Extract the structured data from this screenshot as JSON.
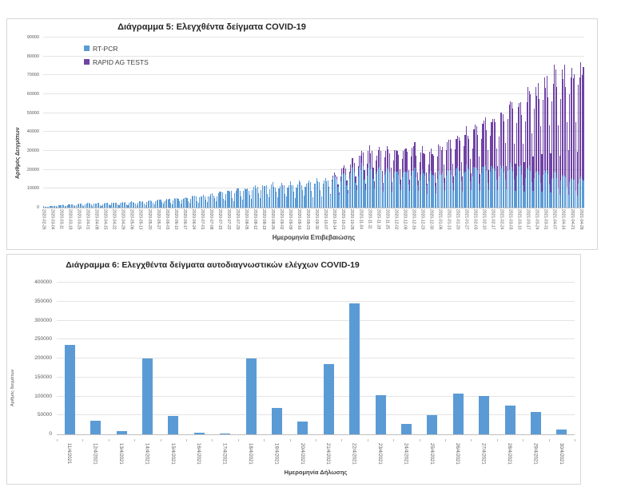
{
  "colors": {
    "rtpcr_blue": "#5b9bd5",
    "rapid_purple": "#6f42a5",
    "grid": "#e4e4e4",
    "axis": "#bfbfbf",
    "tick_text": "#595959",
    "title_text": "#262626"
  },
  "chart_data": [
    {
      "type": "bar",
      "stacked": true,
      "title": "Διάγραμμα 5: Ελεγχθέντα δείγματα COVID-19",
      "ylabel": "Αριθμός Δειγμάτων",
      "xlabel": "Ημερομηνία Επιβεβαιώσης",
      "ylim": [
        0,
        90000
      ],
      "y_tick_step": 10000,
      "grid": true,
      "legend_position": "top-left-inside",
      "x_unit": "day",
      "days_total": 430,
      "start_weekday_index": 3,
      "weekday_factors": [
        0.42,
        0.8,
        0.95,
        1.0,
        0.97,
        0.9,
        0.62
      ],
      "tick_every_days": 7,
      "tick_labels": [
        "2020-02-26",
        "2020-03-04",
        "2020-03-11",
        "2020-03-18",
        "2020-03-25",
        "2020-04-01",
        "2020-04-08",
        "2020-04-15",
        "2020-04-22",
        "2020-04-29",
        "2020-05-06",
        "2020-05-13",
        "2020-05-20",
        "2020-05-27",
        "2020-06-03",
        "2020-06-10",
        "2020-06-17",
        "2020-06-24",
        "2020-07-01",
        "2020-07-08",
        "2020-07-15",
        "2020-07-22",
        "2020-07-29",
        "2020-08-05",
        "2020-08-12",
        "2020-08-19",
        "2020-08-26",
        "2020-09-02",
        "2020-09-09",
        "2020-09-16",
        "2020-09-23",
        "2020-09-30",
        "2020-10-07",
        "2020-10-14",
        "2020-10-21",
        "2020-10-28",
        "2020-11-04",
        "2020-11-11",
        "2020-11-18",
        "2020-11-25",
        "2020-12-02",
        "2020-12-09",
        "2020-12-16",
        "2020-12-23",
        "2020-12-30",
        "2021-01-06",
        "2021-01-13",
        "2021-01-20",
        "2021-01-27",
        "2021-02-03",
        "2021-02-10",
        "2021-02-17",
        "2021-02-24",
        "2021-03-03",
        "2021-03-10",
        "2021-03-17",
        "2021-03-24",
        "2021-03-31",
        "2021-04-07",
        "2021-04-14",
        "2021-04-21",
        "2021-04-28"
      ],
      "series": [
        {
          "name": "RT-PCR",
          "color": "#5b9bd5",
          "weekly_peaks": [
            600,
            900,
            1400,
            1800,
            2000,
            2200,
            2400,
            2600,
            2800,
            3000,
            3200,
            3500,
            3800,
            4200,
            4600,
            5000,
            5500,
            6000,
            6500,
            7200,
            8000,
            8800,
            9500,
            10500,
            11500,
            12000,
            12500,
            12800,
            13000,
            13500,
            14000,
            14500,
            15500,
            16500,
            18000,
            20000,
            22000,
            23000,
            22000,
            21000,
            20500,
            20000,
            20000,
            19000,
            18000,
            19000,
            20000,
            20500,
            21000,
            21500,
            22000,
            22000,
            22500,
            22000,
            21500,
            21000,
            20500,
            20000,
            18000,
            17000,
            16000,
            15000
          ]
        },
        {
          "name": "RAPID AG TESTS",
          "color": "#6f42a5",
          "weekly_peaks": [
            0,
            0,
            0,
            0,
            0,
            0,
            0,
            0,
            0,
            0,
            0,
            0,
            0,
            0,
            0,
            0,
            0,
            0,
            0,
            0,
            0,
            0,
            0,
            0,
            0,
            0,
            0,
            0,
            0,
            0,
            0,
            0,
            0,
            1500,
            3500,
            5000,
            7000,
            9000,
            10000,
            11000,
            12000,
            12500,
            13000,
            12000,
            11000,
            14000,
            16000,
            17500,
            19000,
            21000,
            24000,
            27000,
            30000,
            33000,
            36000,
            40000,
            44000,
            48000,
            52000,
            56000,
            60000,
            62000
          ]
        }
      ]
    },
    {
      "type": "bar",
      "title": "Διάγραμμα 6: Ελεγχθέντα δείγματα αυτοδιαγνωστικών ελέγχων COVID-19",
      "ylabel": "Αριθμός δειγμάτων",
      "xlabel": "Ημερομηνία Δήλωσης",
      "ylim": [
        0,
        400000
      ],
      "y_tick_step": 50000,
      "grid": true,
      "bar_color": "#5b9bd5",
      "categories": [
        "11/4/2021",
        "12/4/2021",
        "13/4/2021",
        "14/4/2021",
        "15/4/2021",
        "16/4/2021",
        "17/4/2021",
        "18/4/2021",
        "19/4/2021",
        "20/4/2021",
        "21/4/2021",
        "22/4/2021",
        "23/4/2021",
        "24/4/2021",
        "25/4/2021",
        "26/4/2021",
        "27/4/2021",
        "28/4/2021",
        "29/4/2021",
        "30/4/2021"
      ],
      "values": [
        235000,
        36000,
        9000,
        199000,
        49000,
        5000,
        2000,
        201000,
        70000,
        34000,
        185000,
        345000,
        103000,
        28000,
        51000,
        107000,
        101000,
        76000,
        58000,
        12000
      ]
    }
  ]
}
